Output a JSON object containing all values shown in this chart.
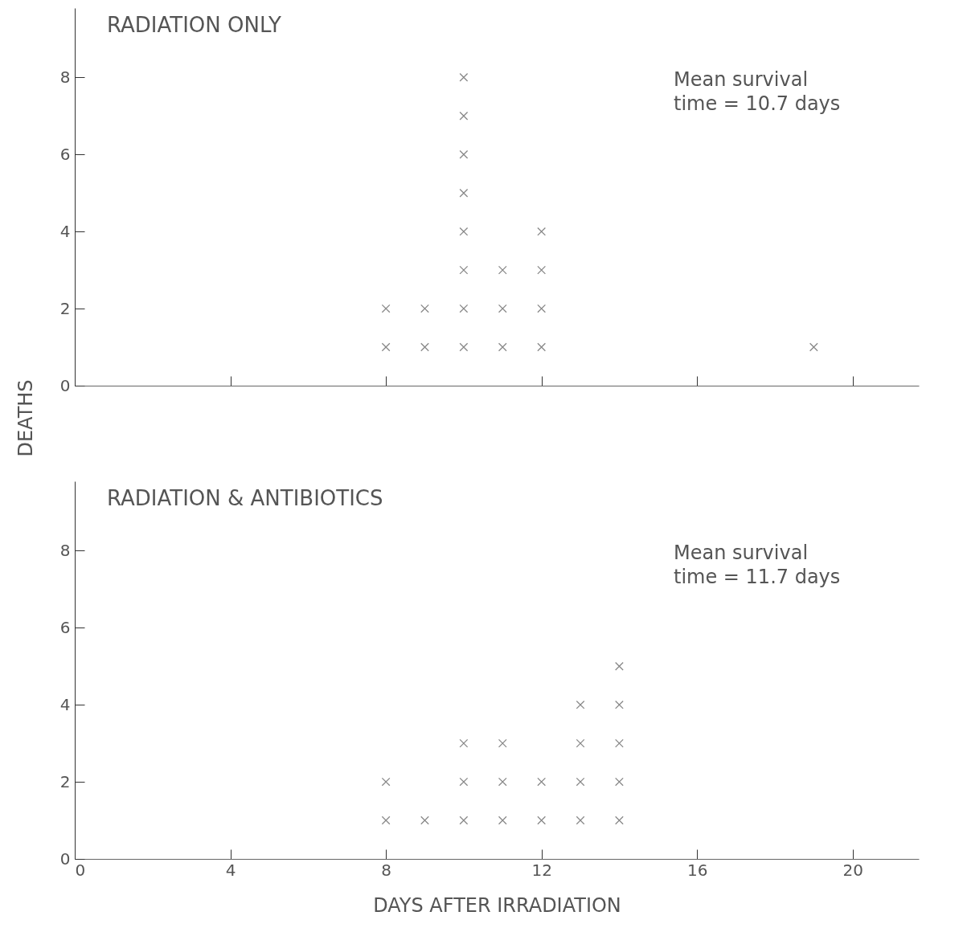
{
  "chart_data": [
    {
      "type": "scatter",
      "title": "RADIATION ONLY",
      "ylabel": "DEATHS",
      "annotations": [
        "Mean survival time = 10.7 days"
      ],
      "marker": "cross",
      "grid": false,
      "tick_labels": "y",
      "xlim": [
        0,
        21.7
      ],
      "xticks": [
        0,
        4,
        8,
        12,
        16,
        20
      ],
      "ylim": [
        0,
        9.8
      ],
      "yticks": [
        0,
        2,
        4,
        6,
        8
      ],
      "series": [
        {
          "color": "#555555",
          "x": [
            8,
            8,
            9,
            9,
            10,
            10,
            10,
            10,
            10,
            10,
            10,
            10,
            11,
            11,
            11,
            12,
            12,
            12,
            12,
            19
          ],
          "values": [
            1,
            2,
            1,
            2,
            1,
            2,
            3,
            4,
            5,
            6,
            7,
            8,
            1,
            2,
            3,
            1,
            2,
            3,
            4,
            1
          ]
        }
      ]
    },
    {
      "type": "scatter",
      "title": "RADIATION & ANTIBIOTICS",
      "xlabel": "DAYS AFTER IRRADIATION",
      "annotations": [
        "Mean survival time = 11.7 days"
      ],
      "marker": "cross",
      "grid": false,
      "xlim": [
        0,
        21.7
      ],
      "xticks": [
        0,
        4,
        8,
        12,
        16,
        20
      ],
      "ylim": [
        0,
        9.8
      ],
      "yticks": [
        0,
        2,
        4,
        6,
        8
      ],
      "series": [
        {
          "color": "#555555",
          "x": [
            8,
            8,
            9,
            10,
            10,
            10,
            11,
            11,
            11,
            12,
            12,
            13,
            13,
            13,
            13,
            14,
            14,
            14,
            14,
            14
          ],
          "values": [
            1,
            2,
            1,
            1,
            2,
            3,
            1,
            2,
            3,
            1,
            2,
            1,
            2,
            3,
            4,
            1,
            2,
            3,
            4,
            5
          ]
        }
      ]
    }
  ]
}
